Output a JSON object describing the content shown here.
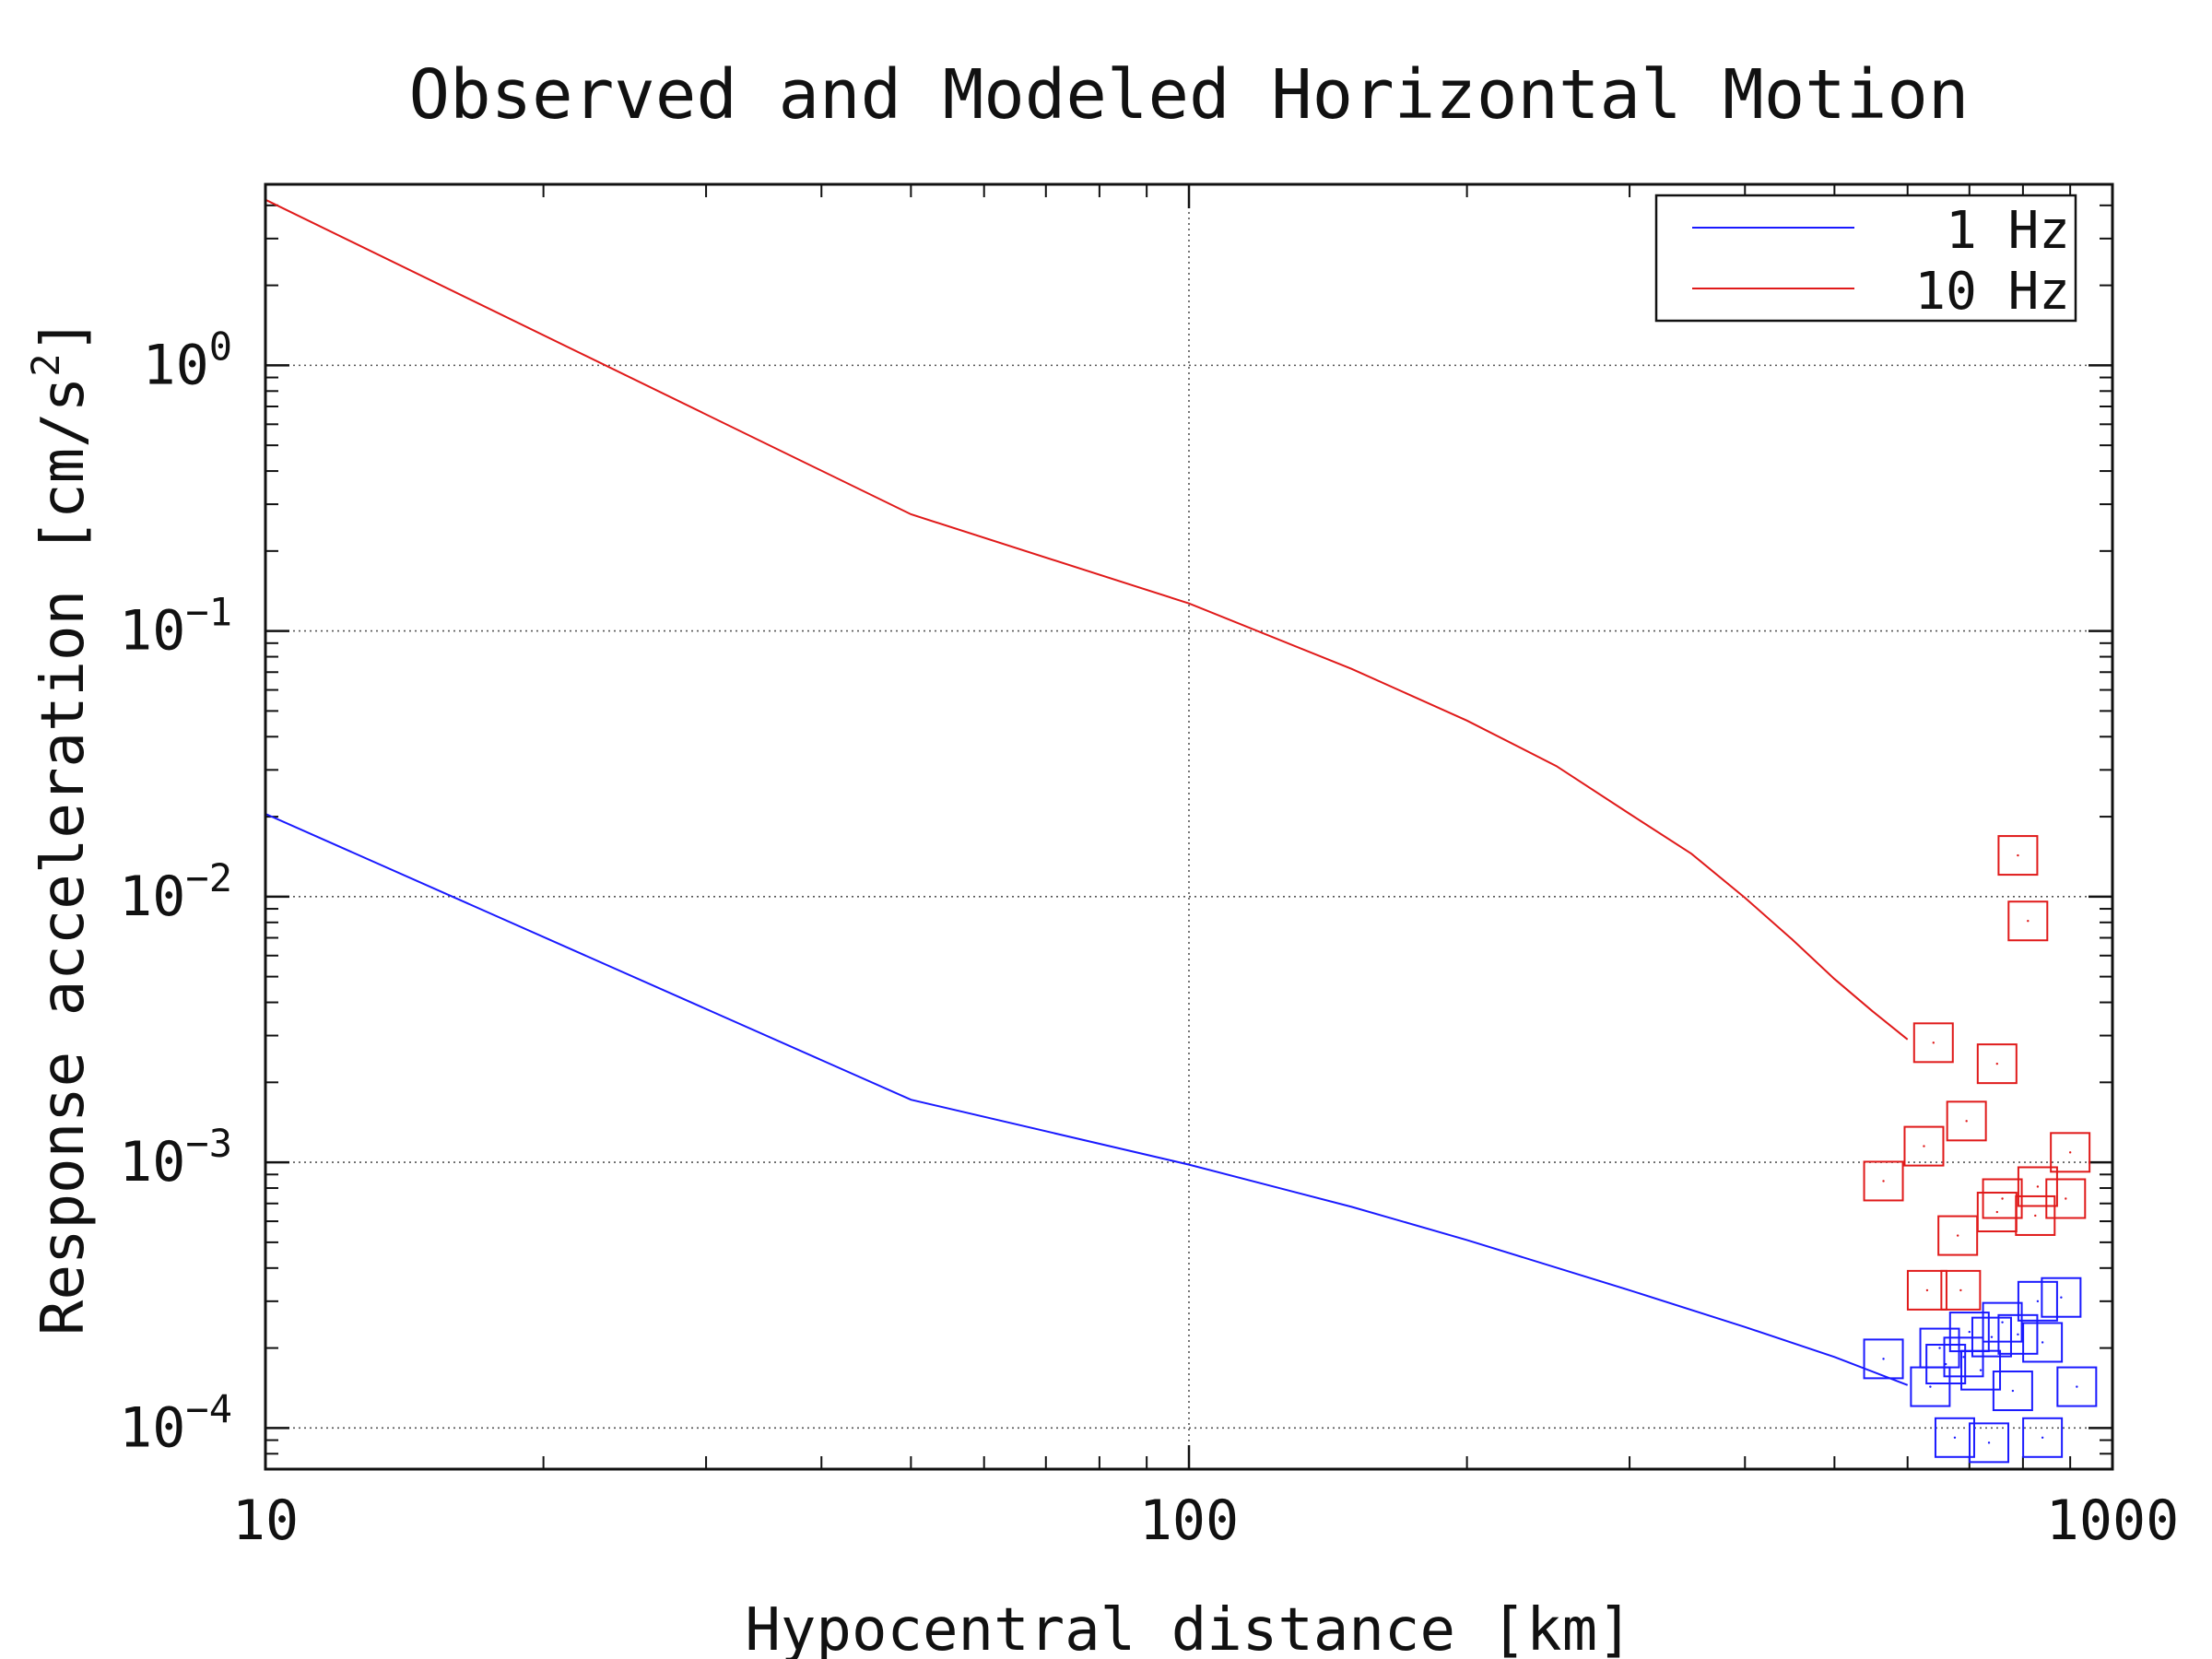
{
  "chart_data": {
    "type": "line",
    "title": "Observed and Modeled Horizontal Motion",
    "xlabel": "Hypocentral distance [km]",
    "ylabel_text": "Response acceleration [cm/s",
    "ylabel_sup": "2",
    "ylabel_close": "]",
    "xscale": "log",
    "yscale": "log",
    "xlim": [
      10,
      1000
    ],
    "ylim": [
      7e-05,
      4.8
    ],
    "grid": true,
    "legend_position": "top-right",
    "x_ticks": [
      {
        "value": 10,
        "label": "10"
      },
      {
        "value": 100,
        "label": "100"
      },
      {
        "value": 1000,
        "label": "1000"
      }
    ],
    "y_ticks": [
      {
        "value": 1,
        "base": "10",
        "exp": "0"
      },
      {
        "value": 0.1,
        "base": "10",
        "exp": "−1"
      },
      {
        "value": 0.01,
        "base": "10",
        "exp": "−2"
      },
      {
        "value": 0.001,
        "base": "10",
        "exp": "−3"
      },
      {
        "value": 0.0001,
        "base": "10",
        "exp": "−4"
      }
    ],
    "series": [
      {
        "name": "1 Hz",
        "color": "#1a1aff",
        "x": [
          10,
          50,
          100,
          150,
          200,
          300,
          400,
          500,
          600
        ],
        "y": [
          0.0205,
          0.00172,
          0.00098,
          0.00068,
          0.00051,
          0.00033,
          0.00024,
          0.000185,
          0.000145
        ]
      },
      {
        "name": "10 Hz",
        "color": "#e01a1a",
        "x": [
          10,
          50,
          100,
          150,
          200,
          250,
          300,
          350,
          400,
          450,
          500,
          550,
          600
        ],
        "y": [
          4.2,
          0.275,
          0.127,
          0.072,
          0.046,
          0.031,
          0.0205,
          0.0145,
          0.0099,
          0.0069,
          0.0049,
          0.0037,
          0.0029
        ]
      }
    ],
    "observed": [
      {
        "series": "10 Hz",
        "color": "#e01a1a",
        "points": [
          [
            790,
            0.0143
          ],
          [
            810,
            0.0081
          ],
          [
            640,
            0.00282
          ],
          [
            750,
            0.00235
          ],
          [
            695,
            0.00143
          ],
          [
            625,
            0.00115
          ],
          [
            900,
            0.00109
          ],
          [
            565,
            0.00085
          ],
          [
            760,
            0.00073
          ],
          [
            890,
            0.00073
          ],
          [
            830,
            0.00081
          ],
          [
            750,
            0.00065
          ],
          [
            825,
            0.00063
          ],
          [
            680,
            0.00053
          ],
          [
            630,
            0.00033
          ],
          [
            685,
            0.00033
          ]
        ]
      },
      {
        "series": "1 Hz",
        "color": "#1a1aff",
        "points": [
          [
            565,
            0.000182
          ],
          [
            635,
            0.000143
          ],
          [
            650,
            0.0002
          ],
          [
            700,
            0.00023
          ],
          [
            740,
            0.00022
          ],
          [
            760,
            0.00025
          ],
          [
            790,
            0.000225
          ],
          [
            830,
            0.0003
          ],
          [
            880,
            0.00031
          ],
          [
            840,
            0.00021
          ],
          [
            690,
            0.000185
          ],
          [
            720,
            0.000165
          ],
          [
            780,
            0.000138
          ],
          [
            915,
            0.000143
          ],
          [
            660,
            0.000174
          ],
          [
            675,
            9.2e-05
          ],
          [
            735,
            8.8e-05
          ],
          [
            840,
            9.2e-05
          ]
        ]
      }
    ]
  }
}
